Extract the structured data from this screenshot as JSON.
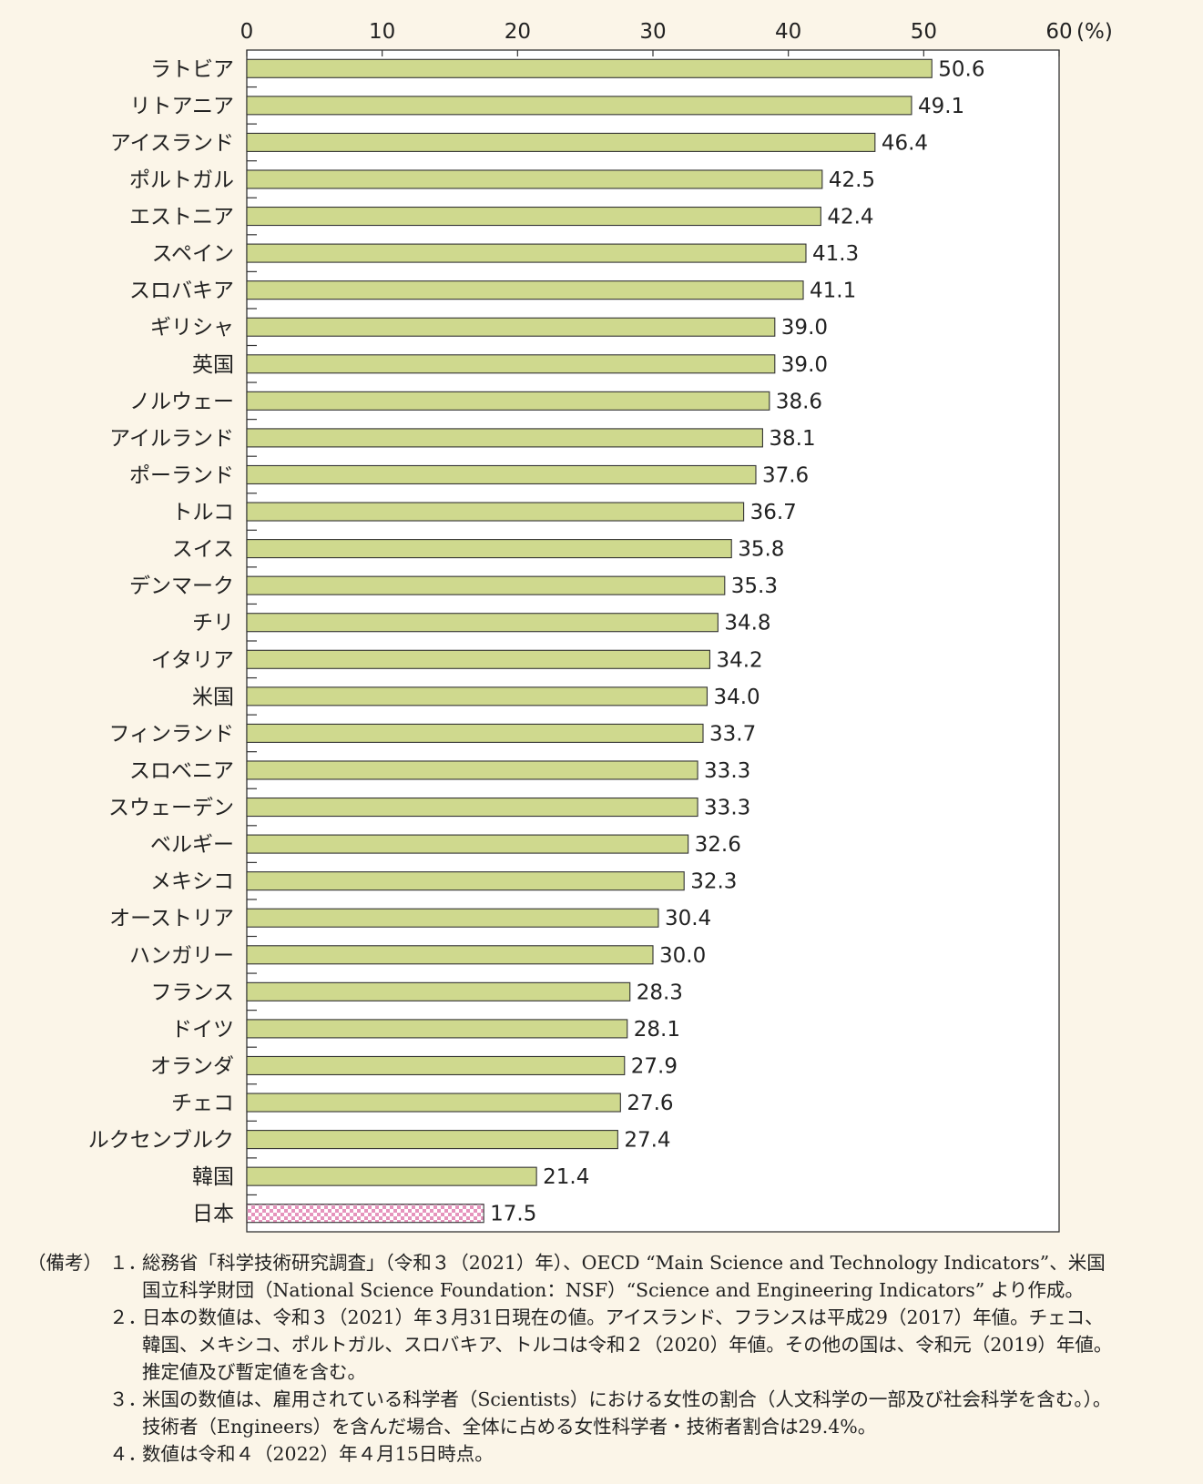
{
  "chart_data": {
    "type": "bar",
    "orientation": "horizontal",
    "unit_label": "(%)",
    "xlim": [
      0,
      60
    ],
    "xticks": [
      0,
      10,
      20,
      30,
      40,
      50,
      60
    ],
    "categories": [
      "ラトビア",
      "リトアニア",
      "アイスランド",
      "ポルトガル",
      "エストニア",
      "スペイン",
      "スロバキア",
      "ギリシャ",
      "英国",
      "ノルウェー",
      "アイルランド",
      "ポーランド",
      "トルコ",
      "スイス",
      "デンマーク",
      "チリ",
      "イタリア",
      "米国",
      "フィンランド",
      "スロベニア",
      "スウェーデン",
      "ベルギー",
      "メキシコ",
      "オーストリア",
      "ハンガリー",
      "フランス",
      "ドイツ",
      "オランダ",
      "チェコ",
      "ルクセンブルク",
      "韓国",
      "日本"
    ],
    "values": [
      50.6,
      49.1,
      46.4,
      42.5,
      42.4,
      41.3,
      41.1,
      39.0,
      39.0,
      38.6,
      38.1,
      37.6,
      36.7,
      35.8,
      35.3,
      34.8,
      34.2,
      34.0,
      33.7,
      33.3,
      33.3,
      32.6,
      32.3,
      30.4,
      30.0,
      28.3,
      28.1,
      27.9,
      27.6,
      27.4,
      21.4,
      17.5
    ],
    "highlight": "日本",
    "colors": {
      "bar": "#cfd98e",
      "highlight": "#e694bd",
      "highlight_bg": "#ffffff"
    },
    "grid": false
  },
  "notes": {
    "label": "（備考）",
    "items": [
      {
        "num": "１．",
        "text": "総務省「科学技術研究調査」（令和３（2021）年）、OECD “Main Science and Technology Indicators”、米国\n国立科学財団（National Science Foundation：NSF）“Science and Engineering Indicators” より作成。"
      },
      {
        "num": "２．",
        "text": "日本の数値は、令和３（2021）年３月31日現在の値。アイスランド、フランスは平成29（2017）年値。チェコ、\n韓国、メキシコ、ポルトガル、スロバキア、トルコは令和２（2020）年値。その他の国は、令和元（2019）年値。\n推定値及び暫定値を含む。"
      },
      {
        "num": "３．",
        "text": "米国の数値は、雇用されている科学者（Scientists）における女性の割合（人文科学の一部及び社会科学を含む。）。\n技術者（Engineers）を含んだ場合、全体に占める女性科学者・技術者割合は29.4%。"
      },
      {
        "num": "４．",
        "text": "数値は令和４（2022）年４月15日時点。"
      }
    ]
  }
}
